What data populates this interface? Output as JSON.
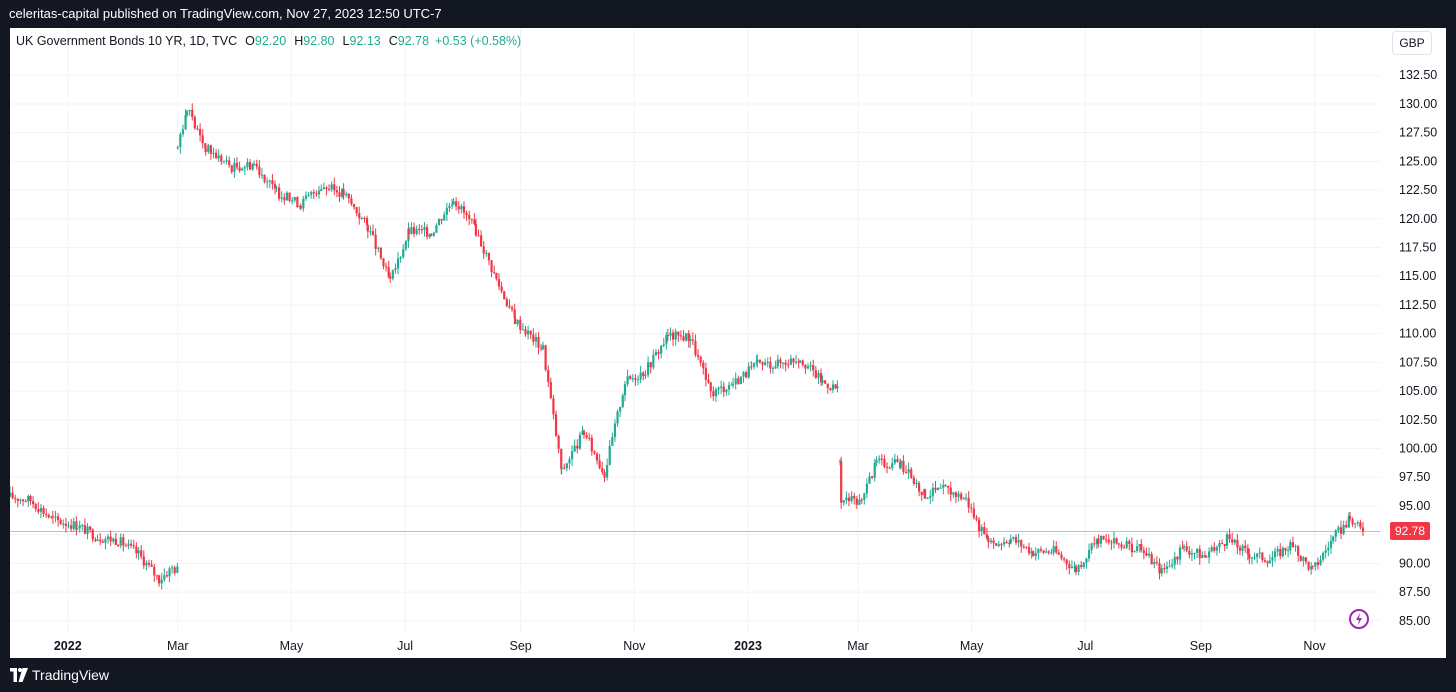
{
  "header": {
    "published": "celeritas-capital published on TradingView.com, Nov 27, 2023 12:50 UTC-7"
  },
  "footer": {
    "brand": "TradingView",
    "logo_icon": "tradingview-logo-icon"
  },
  "legend": {
    "symbol": "UK Government Bonds 10 YR, 1D, TVC",
    "o_label": "O",
    "o_value": "92.20",
    "h_label": "H",
    "h_value": "92.80",
    "l_label": "L",
    "l_value": "92.13",
    "c_label": "C",
    "c_value": "92.78",
    "change": "+0.53 (+0.58%)"
  },
  "currency": "GBP",
  "last_price": "92.78",
  "colors": {
    "up": "#22ab94",
    "down": "#f23645",
    "frame": "#131722",
    "grid": "#f0f3fa",
    "price_line": "#f7a9af",
    "bolt": "#9c27b0"
  },
  "icons": {
    "bolt": "lightning-bolt-icon"
  },
  "chart_data": {
    "type": "candlestick",
    "title": "UK Government Bonds 10 YR, 1D, TVC",
    "y_axis": {
      "ticks": [
        85.0,
        87.5,
        90.0,
        92.5,
        95.0,
        97.5,
        100.0,
        102.5,
        105.0,
        107.5,
        110.0,
        112.5,
        115.0,
        117.5,
        120.0,
        122.5,
        125.0,
        127.5,
        130.0,
        132.5
      ],
      "tick_labels": [
        "85.00",
        "87.50",
        "90.00",
        "92.50",
        "95.00",
        "97.50",
        "100.00",
        "102.50",
        "105.00",
        "107.50",
        "110.00",
        "112.50",
        "115.00",
        "117.50",
        "120.00",
        "122.50",
        "125.00",
        "127.50",
        "130.00",
        "132.50"
      ],
      "range": [
        84.2,
        134.0
      ]
    },
    "x_axis": {
      "tick_labels": [
        "2022",
        "Mar",
        "May",
        "Jul",
        "Sep",
        "Nov",
        "2023",
        "Mar",
        "May",
        "Jul",
        "Sep",
        "Nov"
      ],
      "tick_dates": [
        "2022-01-01",
        "2022-03-01",
        "2022-05-01",
        "2022-07-01",
        "2022-09-01",
        "2022-11-01",
        "2023-01-01",
        "2023-03-01",
        "2023-05-01",
        "2023-07-01",
        "2023-09-01",
        "2023-11-01"
      ],
      "bold_labels": [
        "2022",
        "2023"
      ]
    },
    "range": [
      "2021-12-01",
      "2023-11-27"
    ],
    "grid": true,
    "last_close": 92.78,
    "close_path": [
      [
        "2021-12-01",
        95.8
      ],
      [
        "2021-12-12",
        95.5
      ],
      [
        "2021-12-24",
        93.8
      ],
      [
        "2022-01-06",
        93.3
      ],
      [
        "2022-01-17",
        92.3
      ],
      [
        "2022-01-28",
        92.0
      ],
      [
        "2022-02-08",
        90.8
      ],
      [
        "2022-02-19",
        88.6
      ],
      [
        "2022-02-26",
        89.6
      ],
      [
        "2022-03-01",
        89.4
      ],
      [
        "2022-03-01",
        126.6
      ],
      [
        "2022-03-06",
        129.5
      ],
      [
        "2022-03-16",
        126.2
      ],
      [
        "2022-03-30",
        124.5
      ],
      [
        "2022-04-11",
        124.8
      ],
      [
        "2022-04-23",
        122.3
      ],
      [
        "2022-05-06",
        121.3
      ],
      [
        "2022-05-17",
        122.9
      ],
      [
        "2022-05-29",
        122.2
      ],
      [
        "2022-06-11",
        119.3
      ],
      [
        "2022-06-23",
        114.5
      ],
      [
        "2022-07-03",
        118.9
      ],
      [
        "2022-07-15",
        118.8
      ],
      [
        "2022-07-27",
        121.8
      ],
      [
        "2022-08-08",
        119.0
      ],
      [
        "2022-08-19",
        114.7
      ],
      [
        "2022-08-29",
        111.2
      ],
      [
        "2022-09-13",
        108.7
      ],
      [
        "2022-09-23",
        98.0
      ],
      [
        "2022-10-05",
        101.4
      ],
      [
        "2022-10-16",
        97.8
      ],
      [
        "2022-10-27",
        105.8
      ],
      [
        "2022-11-07",
        106.8
      ],
      [
        "2022-11-19",
        109.8
      ],
      [
        "2022-12-01",
        109.7
      ],
      [
        "2022-12-12",
        104.8
      ],
      [
        "2022-12-24",
        105.7
      ],
      [
        "2023-01-06",
        107.3
      ],
      [
        "2023-01-17",
        107.4
      ],
      [
        "2023-01-29",
        107.9
      ],
      [
        "2023-02-10",
        105.8
      ],
      [
        "2023-02-18",
        105.2
      ],
      [
        "2023-02-20",
        95.6
      ],
      [
        "2023-03-03",
        95.3
      ],
      [
        "2023-03-11",
        98.8
      ],
      [
        "2023-03-24",
        98.6
      ],
      [
        "2023-04-06",
        96.0
      ],
      [
        "2023-04-17",
        96.5
      ],
      [
        "2023-04-28",
        95.6
      ],
      [
        "2023-05-10",
        91.5
      ],
      [
        "2023-05-22",
        92.2
      ],
      [
        "2023-06-03",
        91.0
      ],
      [
        "2023-06-14",
        91.1
      ],
      [
        "2023-06-26",
        89.5
      ],
      [
        "2023-07-08",
        92.1
      ],
      [
        "2023-07-19",
        91.7
      ],
      [
        "2023-07-31",
        91.2
      ],
      [
        "2023-08-11",
        89.3
      ],
      [
        "2023-08-23",
        91.3
      ],
      [
        "2023-09-04",
        90.6
      ],
      [
        "2023-09-15",
        92.1
      ],
      [
        "2023-09-27",
        90.8
      ],
      [
        "2023-10-08",
        90.4
      ],
      [
        "2023-10-19",
        91.6
      ],
      [
        "2023-10-31",
        89.4
      ],
      [
        "2023-11-11",
        92.2
      ],
      [
        "2023-11-20",
        93.8
      ],
      [
        "2023-11-27",
        92.78
      ]
    ]
  }
}
